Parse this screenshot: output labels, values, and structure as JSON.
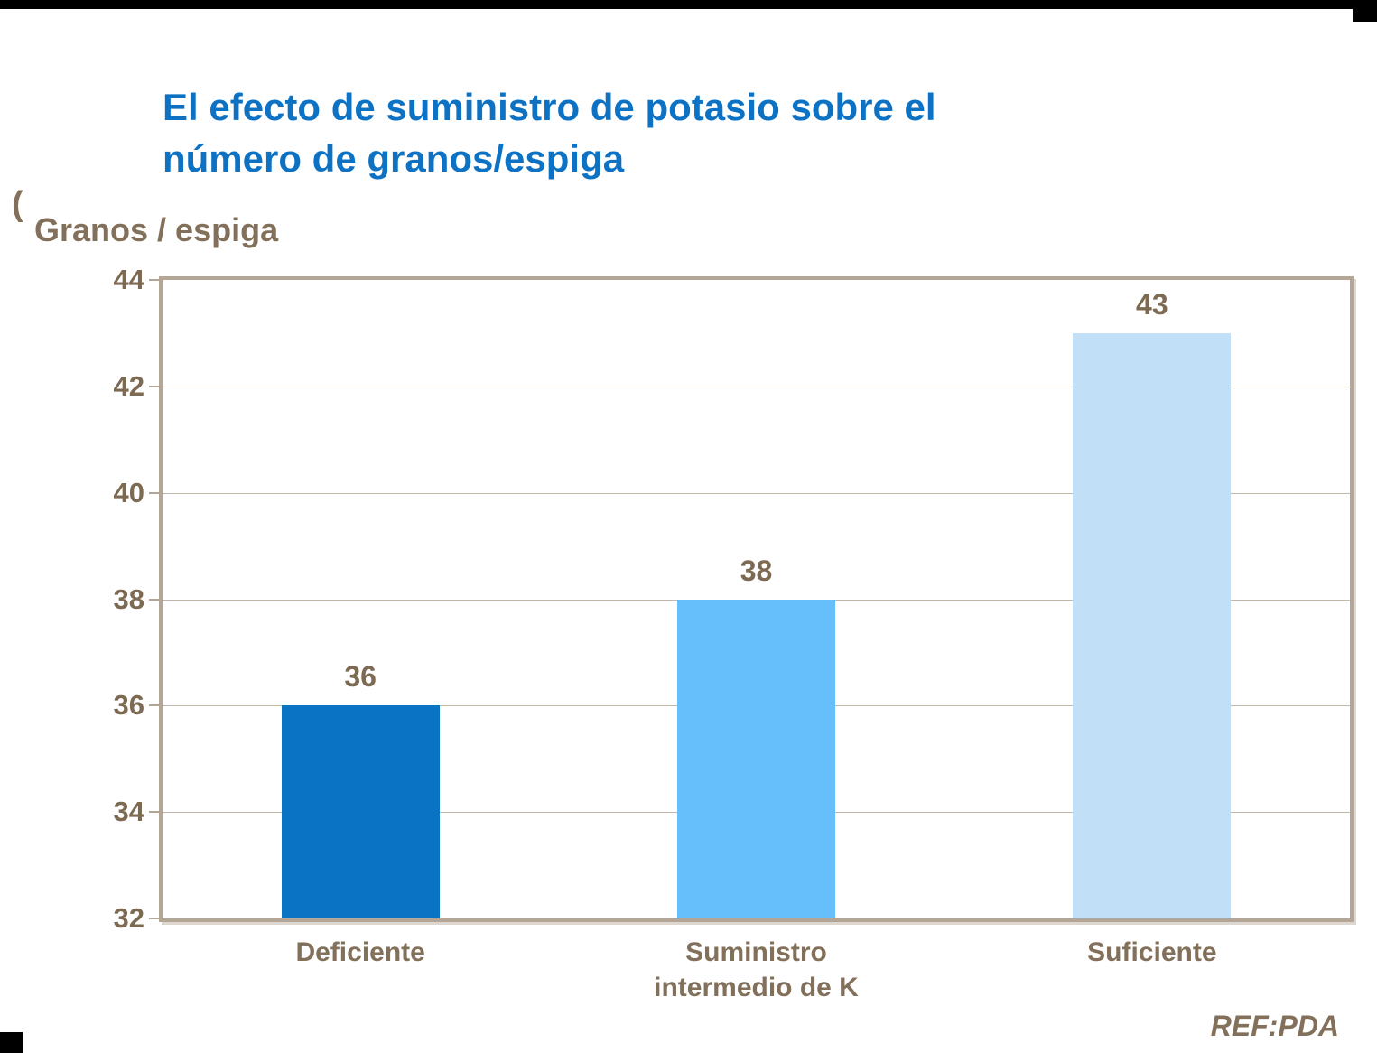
{
  "title": {
    "line1": "El efecto de suministro de potasio sobre el",
    "line2": "número de granos/espiga"
  },
  "clipped_text_fragment": "(",
  "y_axis_label": "Granos / espiga",
  "footer_ref": "REF:PDA",
  "colors": {
    "title_blue": "#0d72c4",
    "text_brown": "#83705a",
    "tick_brown": "#7d6a52",
    "frame_tan": "#b4a697",
    "gridline_tan": "#c3b7a8",
    "bar_deficiente": "#0a73c4",
    "bar_intermedio": "#66bffa",
    "bar_suficiente": "#c2dff8",
    "corner_marker_black": "#000000"
  },
  "chart_data": {
    "type": "bar",
    "title": "El efecto de suministro de potasio sobre el número de granos/espiga",
    "xlabel": "",
    "ylabel": "Granos / espiga",
    "categories": [
      "Deficiente",
      "Suministro intermedio de K",
      "Suficiente"
    ],
    "values": [
      36,
      38,
      43
    ],
    "value_labels": [
      "36",
      "38",
      "43"
    ],
    "bar_colors": [
      "#0a73c4",
      "#66bffa",
      "#c2dff8"
    ],
    "ylim": [
      32,
      44
    ],
    "yticks": [
      44,
      42,
      40,
      38,
      36,
      34,
      32
    ],
    "grid": true,
    "legend_position": "none",
    "annotations": [
      "REF:PDA"
    ]
  }
}
